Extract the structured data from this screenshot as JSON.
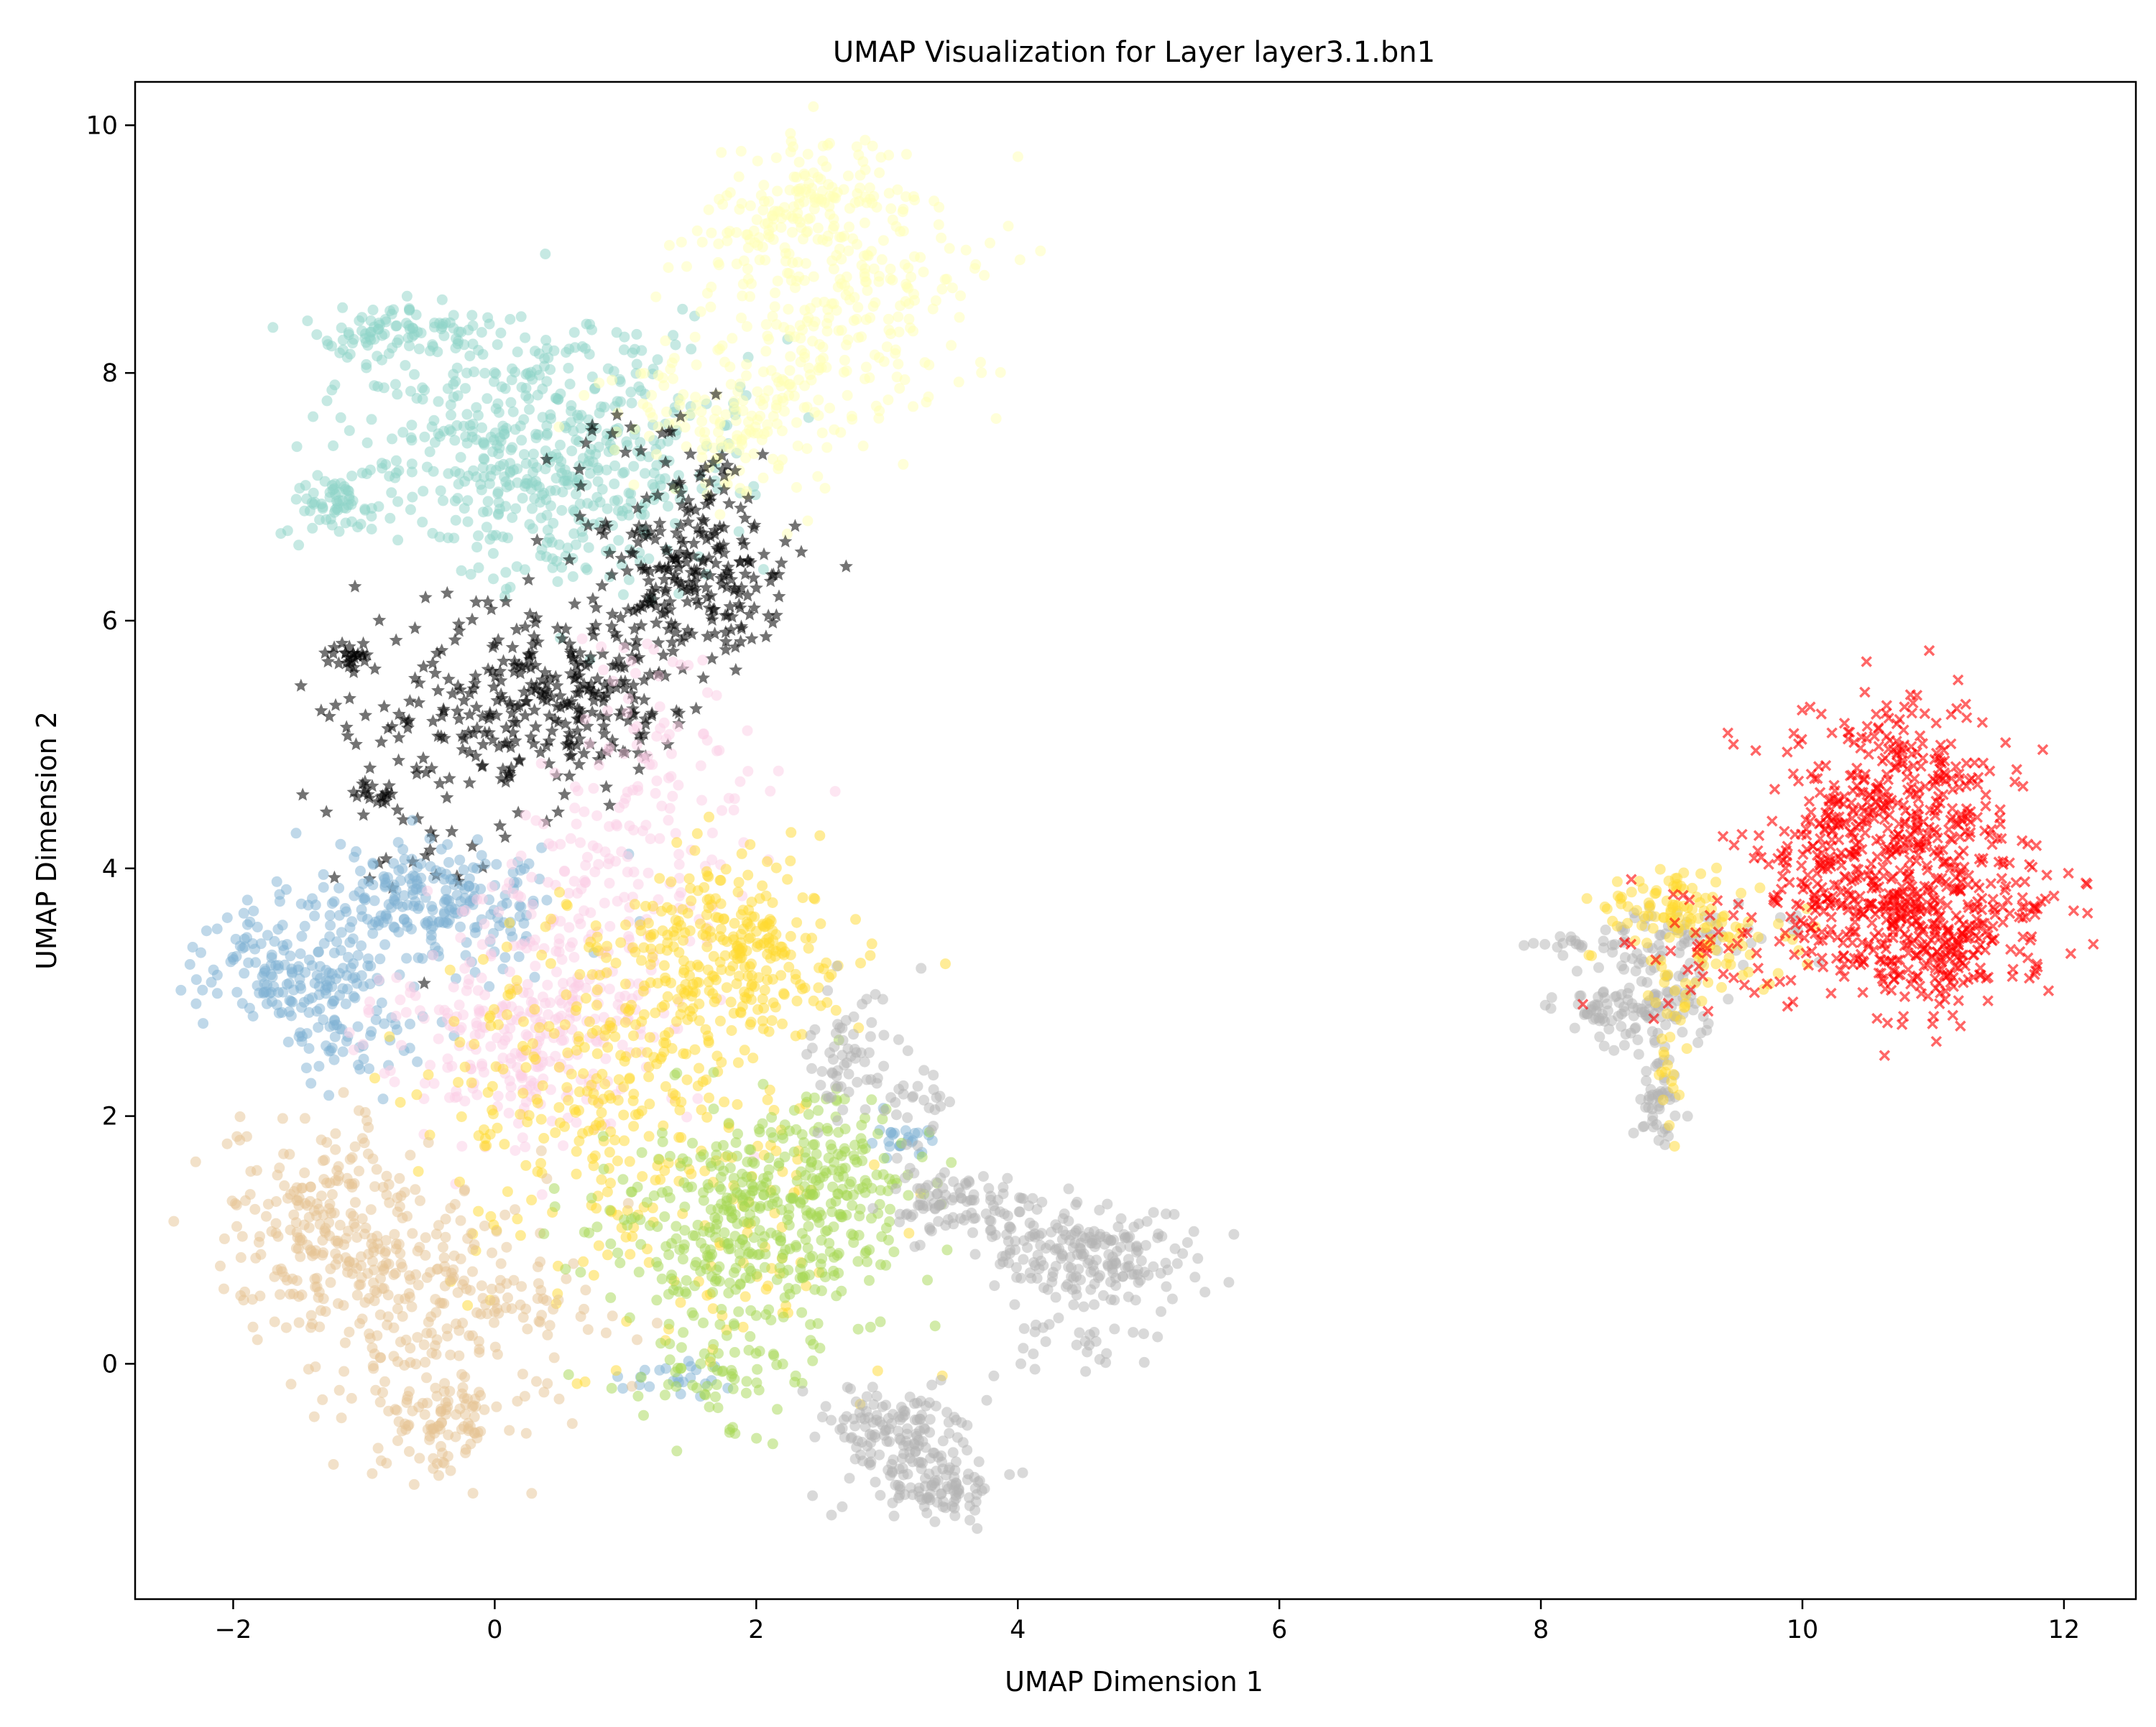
{
  "chart_data": {
    "type": "scatter",
    "title": "UMAP Visualization for Layer layer3.1.bn1",
    "xlabel": "UMAP Dimension 1",
    "ylabel": "UMAP Dimension 2",
    "xlim": [
      -2.75,
      12.55
    ],
    "ylim": [
      -1.9,
      10.35
    ],
    "xticks": [
      -2,
      0,
      2,
      4,
      6,
      8,
      10,
      12
    ],
    "yticks": [
      0,
      2,
      4,
      6,
      8,
      10
    ],
    "xtick_labels": [
      "−2",
      "0",
      "2",
      "4",
      "6",
      "8",
      "10",
      "12"
    ],
    "ytick_labels": [
      "0",
      "2",
      "4",
      "6",
      "8",
      "10"
    ],
    "grid": false,
    "legend": "none",
    "clusters": [
      {
        "name": "cluster-teal",
        "color": "#8dd3c7",
        "marker": "circle",
        "n": 700,
        "seed": 11,
        "blobs": [
          [
            0.3,
            7.6,
            0.75,
            0.45,
            0.55
          ],
          [
            -0.7,
            8.35,
            0.35,
            0.1,
            0.12
          ],
          [
            -1.2,
            6.95,
            0.2,
            0.15,
            0.1
          ],
          [
            0.5,
            6.9,
            0.55,
            0.35,
            0.23
          ]
        ]
      },
      {
        "name": "cluster-light-yellow",
        "color": "#ffffb3",
        "marker": "circle",
        "n": 550,
        "seed": 23,
        "blobs": [
          [
            2.6,
            8.6,
            0.55,
            0.55,
            0.55
          ],
          [
            2.3,
            9.4,
            0.35,
            0.22,
            0.2
          ],
          [
            1.8,
            7.6,
            0.45,
            0.35,
            0.25
          ]
        ]
      },
      {
        "name": "cluster-black-stars",
        "color": "#000000",
        "marker": "star",
        "n": 650,
        "seed": 37,
        "blobs": [
          [
            1.5,
            6.4,
            0.35,
            0.35,
            0.35
          ],
          [
            0.6,
            5.5,
            0.45,
            0.35,
            0.3
          ],
          [
            0.0,
            5.1,
            0.45,
            0.35,
            0.15
          ],
          [
            -0.5,
            4.8,
            0.45,
            0.6,
            0.1
          ],
          [
            -1.1,
            5.7,
            0.08,
            0.05,
            0.04
          ],
          [
            -0.95,
            4.6,
            0.08,
            0.05,
            0.03
          ],
          [
            1.2,
            7.3,
            0.5,
            0.3,
            0.03
          ]
        ]
      },
      {
        "name": "cluster-blue",
        "color": "#80b1d3",
        "marker": "circle",
        "n": 500,
        "seed": 41,
        "blobs": [
          [
            -0.5,
            3.75,
            0.55,
            0.25,
            0.45
          ],
          [
            -1.55,
            3.15,
            0.4,
            0.25,
            0.35
          ],
          [
            -1.0,
            2.6,
            0.3,
            0.2,
            0.1
          ],
          [
            3.1,
            1.8,
            0.12,
            0.08,
            0.05
          ],
          [
            1.3,
            -0.1,
            0.25,
            0.08,
            0.05
          ]
        ]
      },
      {
        "name": "cluster-pink",
        "color": "#fccde5",
        "marker": "circle",
        "n": 500,
        "seed": 53,
        "blobs": [
          [
            0.2,
            2.6,
            0.55,
            0.4,
            0.5
          ],
          [
            0.7,
            3.6,
            0.45,
            0.5,
            0.3
          ],
          [
            1.3,
            4.8,
            0.4,
            0.5,
            0.2
          ]
        ]
      },
      {
        "name": "cluster-gold",
        "color": "#ffd92f",
        "marker": "circle",
        "n": 650,
        "seed": 67,
        "blobs": [
          [
            1.8,
            3.3,
            0.4,
            0.35,
            0.4
          ],
          [
            0.7,
            2.5,
            0.6,
            0.6,
            0.35
          ],
          [
            1.5,
            1.2,
            0.7,
            0.7,
            0.25
          ]
        ]
      },
      {
        "name": "cluster-tan",
        "color": "#e5c494",
        "marker": "circle",
        "n": 550,
        "seed": 79,
        "blobs": [
          [
            -1.3,
            1.1,
            0.4,
            0.45,
            0.4
          ],
          [
            -0.4,
            0.4,
            0.55,
            0.5,
            0.4
          ],
          [
            -0.4,
            -0.5,
            0.3,
            0.25,
            0.2
          ]
        ]
      },
      {
        "name": "cluster-green",
        "color": "#a6d854",
        "marker": "circle",
        "n": 550,
        "seed": 89,
        "blobs": [
          [
            1.9,
            1.1,
            0.55,
            0.45,
            0.6
          ],
          [
            2.6,
            1.5,
            0.35,
            0.35,
            0.25
          ],
          [
            1.7,
            0.0,
            0.35,
            0.3,
            0.15
          ]
        ]
      },
      {
        "name": "cluster-gray",
        "color": "#b3b3b3",
        "marker": "circle",
        "n": 650,
        "seed": 97,
        "blobs": [
          [
            4.5,
            0.9,
            0.4,
            0.2,
            0.3
          ],
          [
            3.5,
            1.3,
            0.25,
            0.15,
            0.15
          ],
          [
            3.1,
            -0.6,
            0.3,
            0.25,
            0.25
          ],
          [
            3.5,
            -1.05,
            0.15,
            0.12,
            0.1
          ],
          [
            2.7,
            2.5,
            0.2,
            0.3,
            0.1
          ],
          [
            3.2,
            2.1,
            0.15,
            0.2,
            0.05
          ],
          [
            4.4,
            0.15,
            0.35,
            0.12,
            0.05
          ]
        ]
      },
      {
        "name": "cluster-gray-right",
        "color": "#b3b3b3",
        "marker": "circle",
        "n": 260,
        "seed": 101,
        "blobs": [
          [
            8.7,
            2.85,
            0.3,
            0.12,
            0.35
          ],
          [
            9.0,
            3.3,
            0.25,
            0.2,
            0.3
          ],
          [
            8.9,
            2.15,
            0.08,
            0.2,
            0.2
          ],
          [
            8.3,
            3.4,
            0.2,
            0.05,
            0.1
          ],
          [
            9.7,
            3.5,
            0.3,
            0.15,
            0.05
          ]
        ]
      },
      {
        "name": "cluster-gold-right",
        "color": "#ffd92f",
        "marker": "circle",
        "n": 160,
        "seed": 103,
        "blobs": [
          [
            8.95,
            3.7,
            0.2,
            0.15,
            0.45
          ],
          [
            9.3,
            3.3,
            0.35,
            0.25,
            0.35
          ],
          [
            9.0,
            2.6,
            0.1,
            0.3,
            0.2
          ]
        ]
      },
      {
        "name": "cluster-red",
        "color": "#ff0000",
        "marker": "x",
        "n": 900,
        "seed": 107,
        "blobs": [
          [
            10.7,
            4.5,
            0.45,
            0.45,
            0.4
          ],
          [
            11.0,
            3.5,
            0.45,
            0.35,
            0.4
          ],
          [
            10.3,
            3.9,
            0.3,
            0.35,
            0.15
          ],
          [
            9.3,
            3.4,
            0.35,
            0.3,
            0.05
          ]
        ]
      }
    ]
  }
}
